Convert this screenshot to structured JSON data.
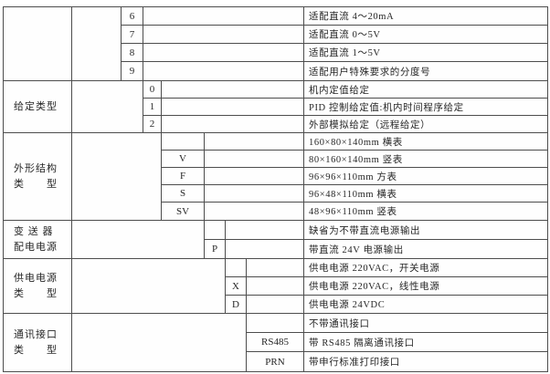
{
  "table": {
    "border_color": "#4d4d4d",
    "text_color": "#262626",
    "sections": [
      {
        "category_lines": [],
        "codes": [
          "6",
          "7",
          "8",
          "9"
        ],
        "descriptions": [
          "适配直流 4～20mA",
          "适配直流 0～5V",
          "适配直流 1～5V",
          "适配用户特殊要求的分度号"
        ]
      },
      {
        "category_lines": [
          "给定类型"
        ],
        "codes": [
          "0",
          "1",
          "2"
        ],
        "descriptions": [
          "机内定值给定",
          "PID 控制给定值:机内时间程序给定",
          "外部模拟给定（远程给定）"
        ]
      },
      {
        "category_lines": [
          "外形结构",
          "类　　型"
        ],
        "codes": [
          "",
          "V",
          "F",
          "S",
          "SV"
        ],
        "descriptions": [
          "160×80×140mm 横表",
          "80×160×140mm 竖表",
          "96×96×110mm 方表",
          "96×48×110mm 横表",
          "48×96×110mm 竖表"
        ]
      },
      {
        "category_lines": [
          "变 送 器",
          "配电电源"
        ],
        "codes": [
          "",
          "P"
        ],
        "descriptions": [
          "缺省为不带直流电源输出",
          "带直流 24V 电源输出"
        ]
      },
      {
        "category_lines": [
          "供电电源",
          "类　　型"
        ],
        "codes": [
          "",
          "X",
          "D"
        ],
        "descriptions": [
          "供电电源 220VAC，开关电源",
          "供电电源 220VAC，线性电源",
          "供电电源 24VDC"
        ]
      },
      {
        "category_lines": [
          "通讯接口",
          "类　　型"
        ],
        "codes": [
          "",
          "RS485",
          "PRN"
        ],
        "descriptions": [
          "不带通讯接口",
          "带 RS485 隔离通讯接口",
          "带申行标准打印接口"
        ]
      }
    ]
  }
}
